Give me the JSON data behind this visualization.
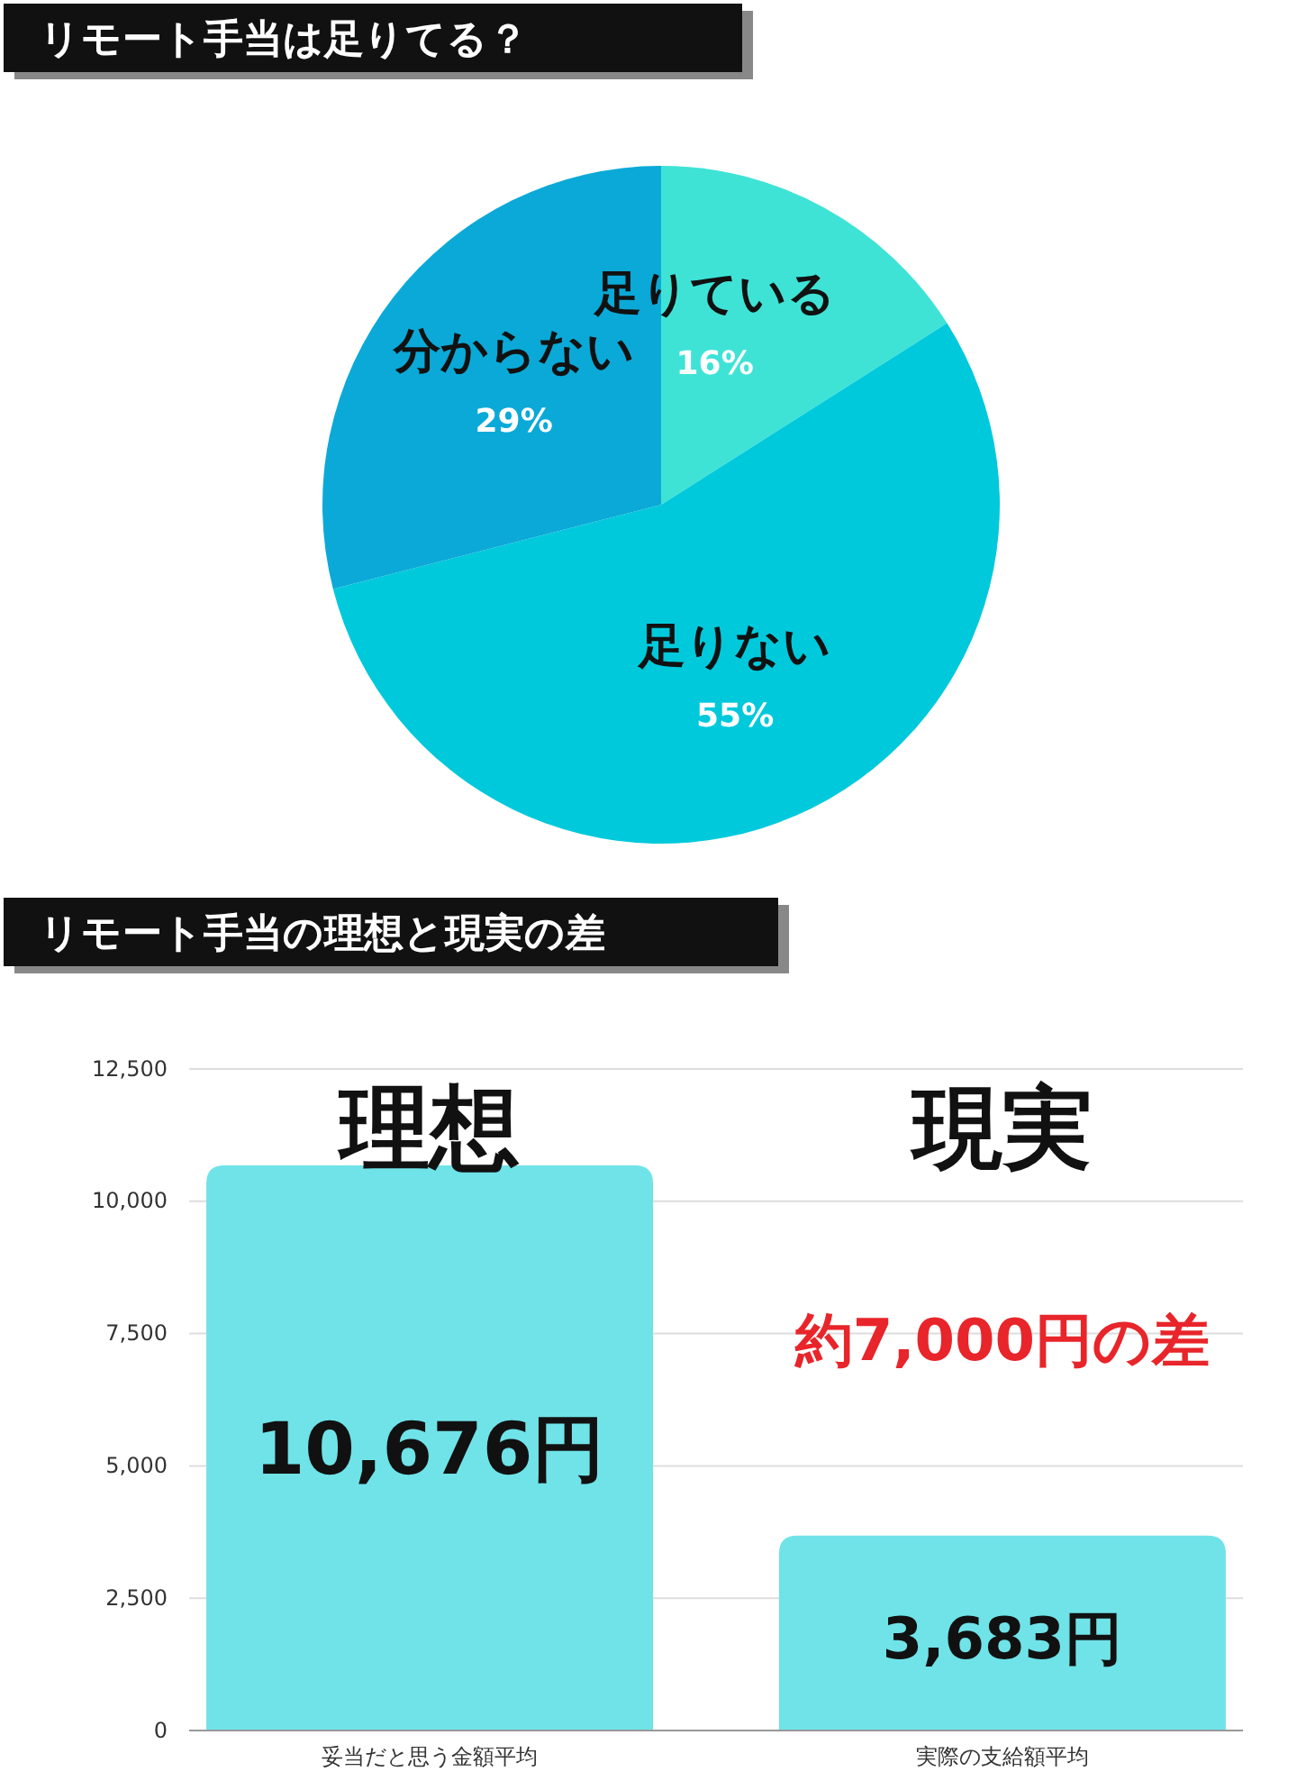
{
  "chart_data": [
    {
      "type": "pie",
      "title": "リモート手当は足りてる？",
      "categories": [
        "足りている",
        "足りない",
        "分からない"
      ],
      "values": [
        16,
        55,
        29
      ],
      "colors": [
        "#3ee3d6",
        "#00c9dc",
        "#0aa9d8"
      ],
      "value_labels": [
        "16%",
        "55%",
        "29%"
      ]
    },
    {
      "type": "bar",
      "title": "リモート手当の理想と現実の差",
      "categories": [
        "妥当だと思う金額平均",
        "実際の支給額平均"
      ],
      "values": [
        10676,
        3683
      ],
      "color": "#6fe3e8",
      "value_labels": [
        "10,676円",
        "3,683円"
      ],
      "ylim": [
        0,
        12500
      ],
      "yticks": [
        0,
        {
          "value": 2500,
          "label": "2,500"
        },
        {
          "value": 5000,
          "label": "5,000"
        },
        {
          "value": 7500,
          "label": "7,500"
        },
        {
          "value": 10000,
          "label": "10,000"
        },
        {
          "value": 12500,
          "label": "12,500"
        }
      ],
      "grid": "y",
      "annotations": [
        "理想",
        "現実",
        "約7,000円の差"
      ]
    }
  ]
}
